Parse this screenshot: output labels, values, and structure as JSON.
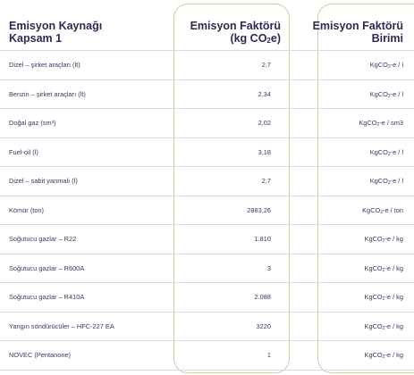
{
  "header": {
    "source_line1": "Emisyon Kaynağı",
    "source_line2": "Kapsam 1",
    "factor_line1": "Emisyon Faktörü",
    "factor_line2_pre": "(kg CO",
    "factor_line2_sub": "2",
    "factor_line2_post": "e)",
    "unit_line1": "Emisyon Faktörü",
    "unit_line2": "Birimi"
  },
  "rows": [
    {
      "source": "Dizel – şirket araçları (lt)",
      "factor": "2,7",
      "unit_pre": "KgCO",
      "unit_sub": "2",
      "unit_post": "-e / l"
    },
    {
      "source": "Benzin – şirket araçları (lt)",
      "factor": "2,34",
      "unit_pre": "KgCO",
      "unit_sub": "2",
      "unit_post": "-e / l"
    },
    {
      "source": "Doğal gaz (sm³)",
      "factor": "2,02",
      "unit_pre": "KgCO",
      "unit_sub": "2",
      "unit_post": "-e / sm3"
    },
    {
      "source": "Fuel-oil (l)",
      "factor": "3,18",
      "unit_pre": "KgCO",
      "unit_sub": "2",
      "unit_post": "-e / l"
    },
    {
      "source": "Dizel – sabit yanmalı (l)",
      "factor": "2,7",
      "unit_pre": "KgCO",
      "unit_sub": "2",
      "unit_post": "-e / l"
    },
    {
      "source": "Kömür (ton)",
      "factor": "2883,26",
      "unit_pre": "KgCO",
      "unit_sub": "2",
      "unit_post": "-e / ton"
    },
    {
      "source": "Soğutucu gazlar – R22",
      "factor": "1.810",
      "unit_pre": "KgCO",
      "unit_sub": "2",
      "unit_post": "-e / kg"
    },
    {
      "source": "Soğutucu gazlar – R600A",
      "factor": "3",
      "unit_pre": "KgCO",
      "unit_sub": "2",
      "unit_post": "-e / kg"
    },
    {
      "source": "Soğutucu gazlar – R410A",
      "factor": "2.088",
      "unit_pre": "KgCO",
      "unit_sub": "2",
      "unit_post": "-e / kg"
    },
    {
      "source": "Yangın söndürücüler – HFC-227 EA",
      "factor": "3220",
      "unit_pre": "KgCO",
      "unit_sub": "2",
      "unit_post": "-e / kg"
    },
    {
      "source": "NOVEC (Pentanone)",
      "factor": "1",
      "unit_pre": "KgCO",
      "unit_sub": "2",
      "unit_post": "-e / kg"
    }
  ],
  "colors": {
    "text": "#2e2a55",
    "box_border": "#d8c9a0",
    "row_border": "#dcd8e4"
  }
}
